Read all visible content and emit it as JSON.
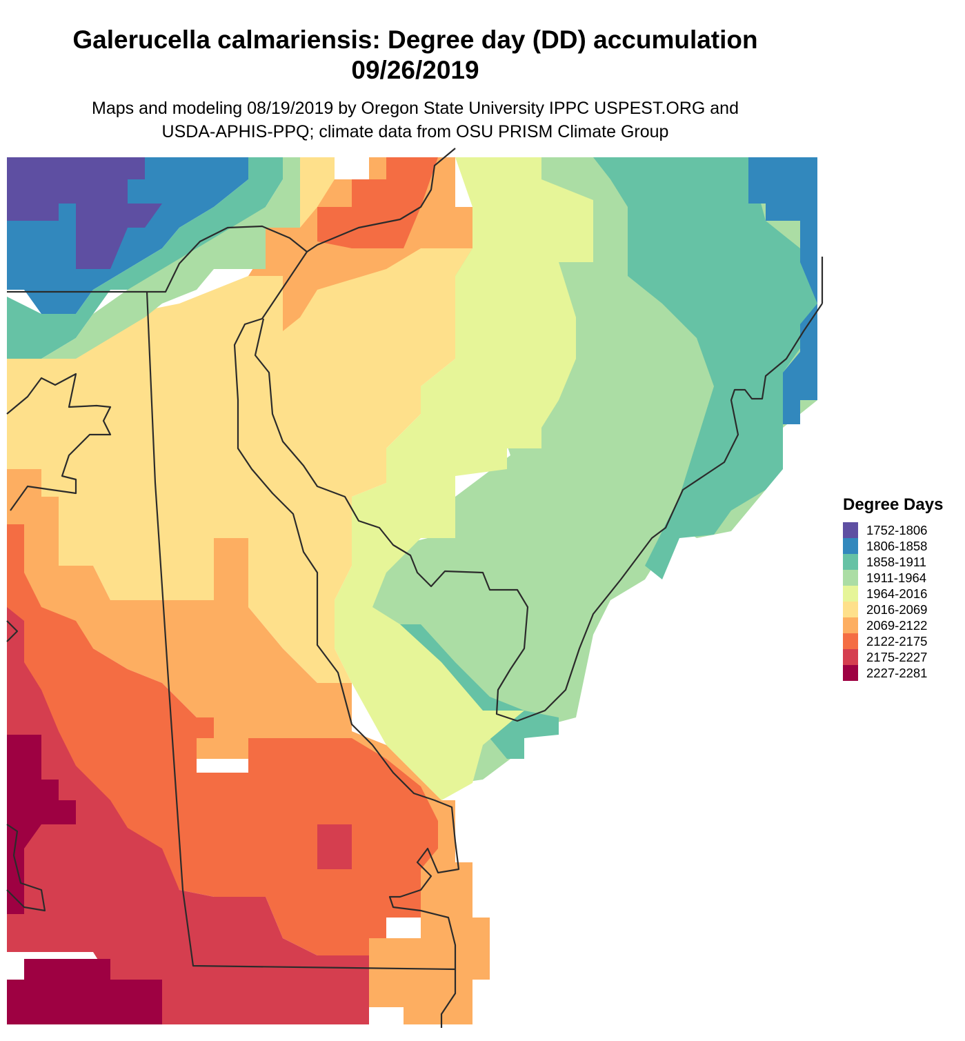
{
  "title": {
    "line1": "Galerucella calmariensis: Degree day (DD) accumulation",
    "line2": "09/26/2019"
  },
  "subtitle": {
    "line1": "Maps and modeling 08/19/2019 by Oregon State University IPPC USPEST.ORG and",
    "line2": "USDA-APHIS-PPQ; climate data from OSU PRISM Climate Group"
  },
  "legend": {
    "title": "Degree Days",
    "items": [
      {
        "label": "1752-1806",
        "color": "#5e4fa2"
      },
      {
        "label": "1806-1858",
        "color": "#3288bd"
      },
      {
        "label": "1858-1911",
        "color": "#66c2a5"
      },
      {
        "label": "1911-1964",
        "color": "#abdda4"
      },
      {
        "label": "1964-2016",
        "color": "#e6f598"
      },
      {
        "label": "2016-2069",
        "color": "#fee08b"
      },
      {
        "label": "2069-2122",
        "color": "#fdae61"
      },
      {
        "label": "2122-2175",
        "color": "#f46d43"
      },
      {
        "label": "2175-2227",
        "color": "#d53e4f"
      },
      {
        "label": "2227-2281",
        "color": "#9e0142"
      }
    ]
  }
}
